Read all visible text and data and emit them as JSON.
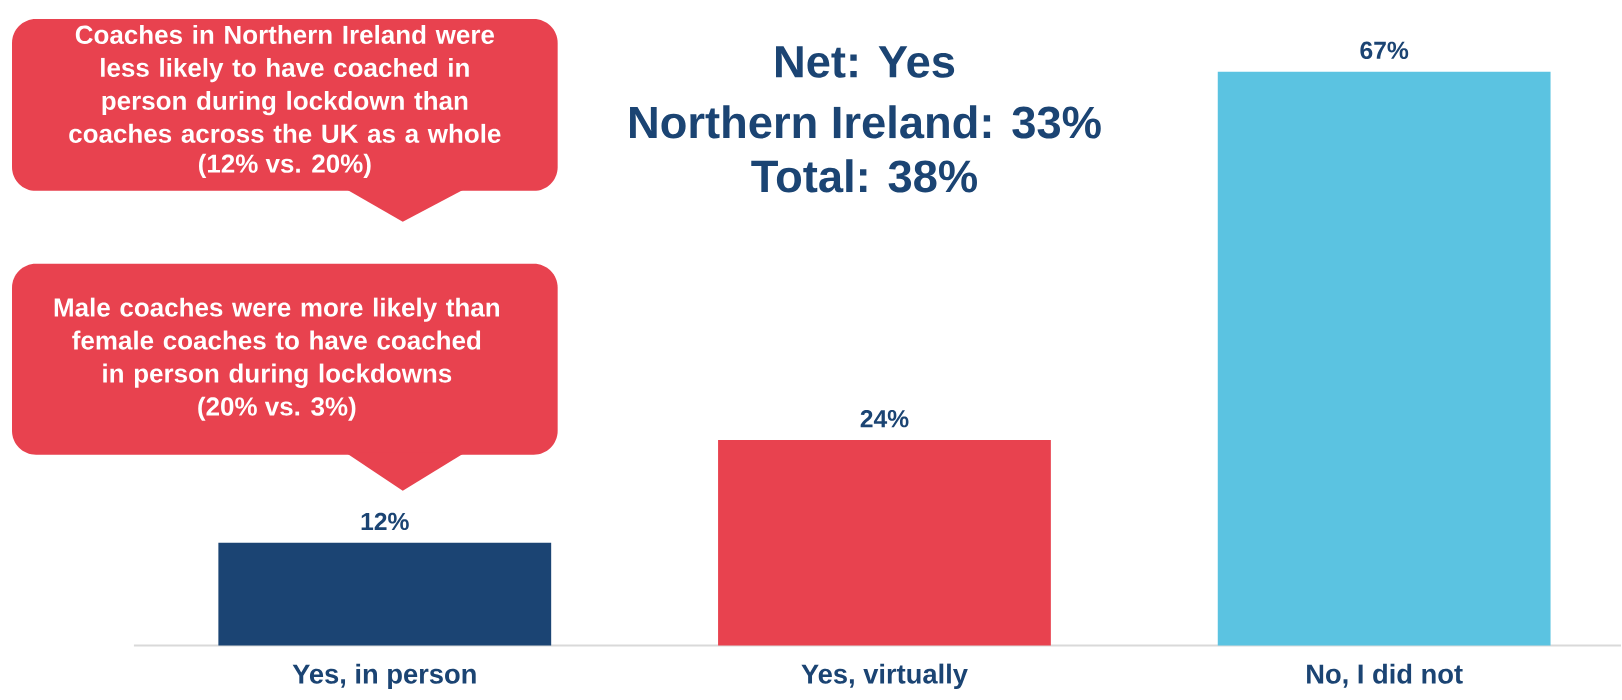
{
  "chart_data": {
    "type": "bar",
    "title": "Net: Yes",
    "categories": [
      "Yes, in person",
      "Yes, virtually",
      "No, I did not"
    ],
    "values": [
      12,
      24,
      67
    ],
    "colors": [
      "#1b4473",
      "#e8424f",
      "#5bc3e1"
    ],
    "value_labels": [
      "12%",
      "24%",
      "67%"
    ],
    "tick_labels": "x",
    "annotations": [
      "Northern Ireland: 33%",
      "Total: 38%",
      "Coaches in Northern Ireland were less likely to have coached in person during lockdown than coaches across the UK as a whole",
      "(12% vs. 20%)",
      "Male coaches were more likely than female coaches to have coached in person during lockdowns",
      "(20% vs. 3%)"
    ]
  }
}
